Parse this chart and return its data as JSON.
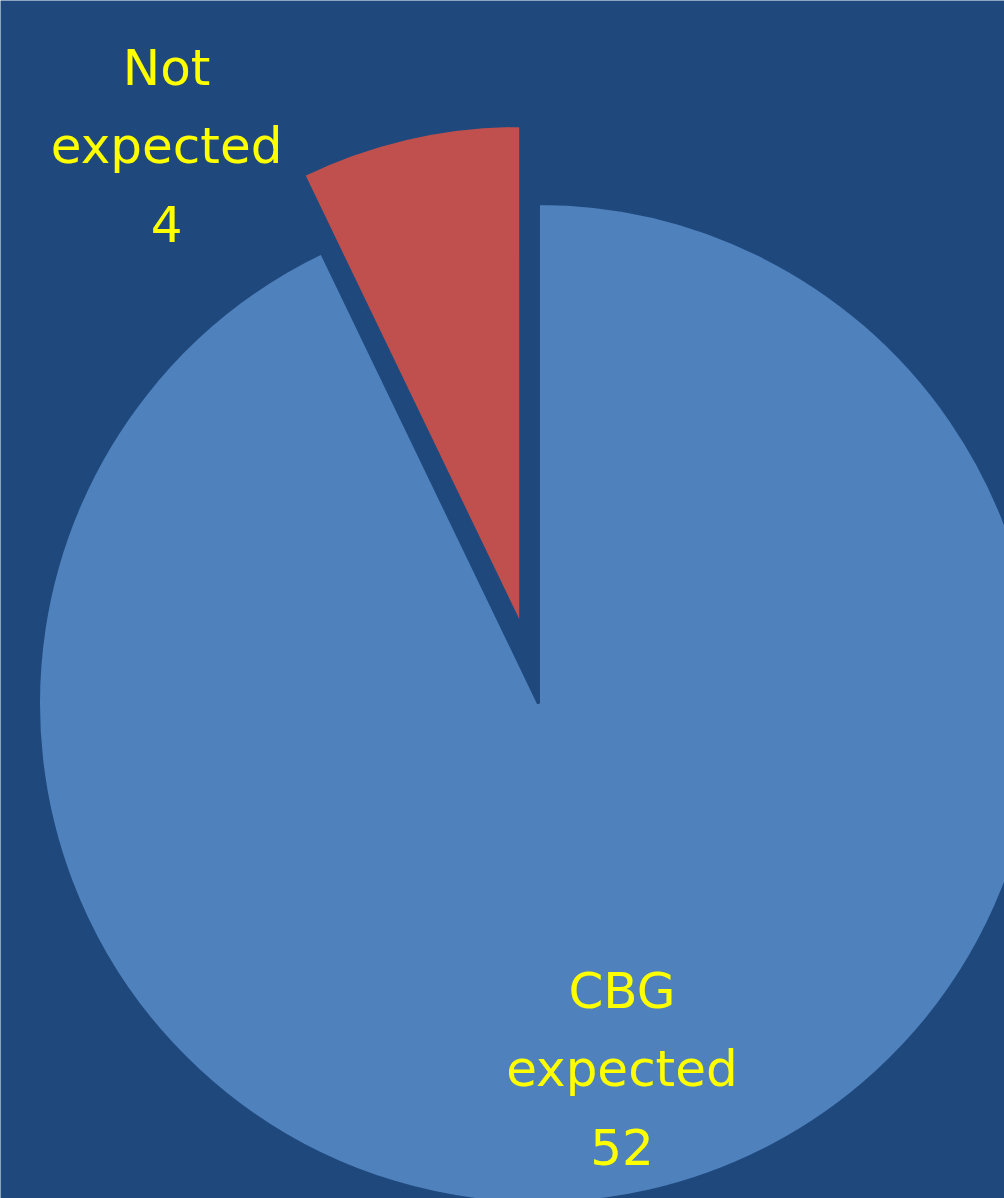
{
  "chart_data": {
    "type": "pie",
    "categories": [
      "CBG expected",
      "Not expected"
    ],
    "values": [
      52,
      4
    ],
    "colors": [
      "#4f81bd",
      "#c0504d"
    ],
    "data_labels": true
  }
}
